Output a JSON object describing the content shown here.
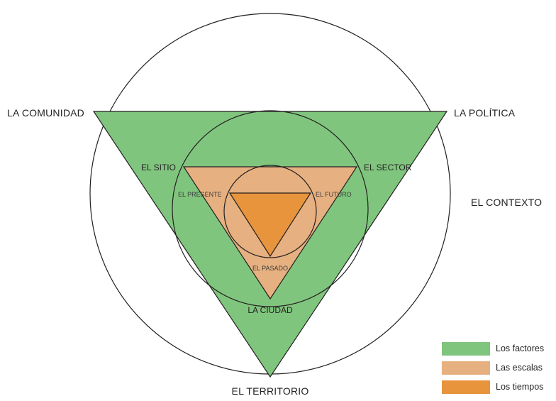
{
  "colors": {
    "factores": "#80c57e",
    "escalas": "#e6b080",
    "tiempos": "#e8943c",
    "stroke": "#231f20",
    "background": "#ffffff"
  },
  "labels": {
    "contexto": "EL CONTEXTO",
    "comunidad": "LA COMUNIDAD",
    "politica": "LA POLÍTICA",
    "territorio": "EL TERRITORIO",
    "sitio": "EL SITIO",
    "sector": "EL SECTOR",
    "ciudad": "LA CIUDAD",
    "presente": "EL PRESENTE",
    "futuro": "EL FUTURO",
    "pasado": "EL PASADO"
  },
  "legend": [
    {
      "label": "Los factores",
      "color": "#80c57e"
    },
    {
      "label": "Las escalas",
      "color": "#e6b080"
    },
    {
      "label": "Los tiempos",
      "color": "#e8943c"
    }
  ]
}
